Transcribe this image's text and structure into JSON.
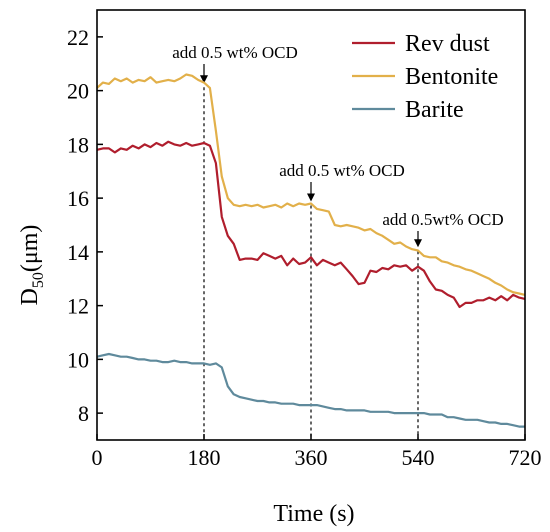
{
  "chart_data": {
    "type": "line",
    "xlabel": "Time (s)",
    "ylabel": "D",
    "ylabel_sub": "50",
    "ylabel_unit": "(μm)",
    "xlim": [
      0,
      720
    ],
    "ylim": [
      7,
      23
    ],
    "xticks": [
      0,
      180,
      360,
      540,
      720
    ],
    "yticks": [
      8,
      10,
      12,
      14,
      16,
      18,
      20,
      22
    ],
    "grid": false,
    "legend_position": "top-right",
    "annotations": [
      {
        "text": "add 0.5 wt% OCD",
        "x": 180,
        "y": 20.2
      },
      {
        "text": "add 0.5 wt% OCD",
        "x": 360,
        "y": 15.8
      },
      {
        "text": "add 0.5wt% OCD",
        "x": 540,
        "y": 14.1
      }
    ],
    "series": [
      {
        "name": "Rev dust",
        "color": "#b01e2d",
        "points": [
          [
            0,
            17.8
          ],
          [
            10,
            17.85
          ],
          [
            20,
            17.85
          ],
          [
            30,
            17.7
          ],
          [
            40,
            17.85
          ],
          [
            50,
            17.8
          ],
          [
            60,
            17.95
          ],
          [
            70,
            17.85
          ],
          [
            80,
            18.0
          ],
          [
            90,
            17.9
          ],
          [
            100,
            18.05
          ],
          [
            110,
            17.95
          ],
          [
            120,
            18.1
          ],
          [
            130,
            18.0
          ],
          [
            140,
            17.95
          ],
          [
            150,
            18.05
          ],
          [
            160,
            17.95
          ],
          [
            170,
            18.0
          ],
          [
            180,
            18.05
          ],
          [
            190,
            17.95
          ],
          [
            200,
            17.3
          ],
          [
            210,
            15.3
          ],
          [
            220,
            14.6
          ],
          [
            230,
            14.3
          ],
          [
            240,
            13.7
          ],
          [
            250,
            13.75
          ],
          [
            260,
            13.75
          ],
          [
            270,
            13.7
          ],
          [
            280,
            13.95
          ],
          [
            290,
            13.85
          ],
          [
            300,
            13.75
          ],
          [
            310,
            13.85
          ],
          [
            320,
            13.5
          ],
          [
            330,
            13.75
          ],
          [
            340,
            13.55
          ],
          [
            350,
            13.6
          ],
          [
            360,
            13.8
          ],
          [
            370,
            13.5
          ],
          [
            380,
            13.7
          ],
          [
            390,
            13.6
          ],
          [
            400,
            13.5
          ],
          [
            410,
            13.6
          ],
          [
            420,
            13.35
          ],
          [
            430,
            13.1
          ],
          [
            440,
            12.8
          ],
          [
            450,
            12.85
          ],
          [
            460,
            13.3
          ],
          [
            470,
            13.25
          ],
          [
            480,
            13.4
          ],
          [
            490,
            13.35
          ],
          [
            500,
            13.5
          ],
          [
            510,
            13.45
          ],
          [
            520,
            13.5
          ],
          [
            530,
            13.3
          ],
          [
            540,
            13.45
          ],
          [
            550,
            13.3
          ],
          [
            560,
            12.9
          ],
          [
            570,
            12.6
          ],
          [
            580,
            12.55
          ],
          [
            590,
            12.4
          ],
          [
            600,
            12.3
          ],
          [
            610,
            11.95
          ],
          [
            620,
            12.1
          ],
          [
            630,
            12.1
          ],
          [
            640,
            12.2
          ],
          [
            650,
            12.2
          ],
          [
            660,
            12.3
          ],
          [
            670,
            12.2
          ],
          [
            680,
            12.35
          ],
          [
            690,
            12.2
          ],
          [
            700,
            12.4
          ],
          [
            710,
            12.3
          ],
          [
            720,
            12.25
          ]
        ]
      },
      {
        "name": "Bentonite",
        "color": "#e2b04a",
        "points": [
          [
            0,
            20.1
          ],
          [
            10,
            20.3
          ],
          [
            20,
            20.25
          ],
          [
            30,
            20.45
          ],
          [
            40,
            20.35
          ],
          [
            50,
            20.45
          ],
          [
            60,
            20.3
          ],
          [
            70,
            20.4
          ],
          [
            80,
            20.35
          ],
          [
            90,
            20.5
          ],
          [
            100,
            20.3
          ],
          [
            110,
            20.35
          ],
          [
            120,
            20.4
          ],
          [
            130,
            20.35
          ],
          [
            140,
            20.45
          ],
          [
            150,
            20.6
          ],
          [
            160,
            20.55
          ],
          [
            170,
            20.4
          ],
          [
            180,
            20.3
          ],
          [
            190,
            20.1
          ],
          [
            200,
            18.5
          ],
          [
            210,
            16.8
          ],
          [
            220,
            16.0
          ],
          [
            230,
            15.75
          ],
          [
            240,
            15.7
          ],
          [
            250,
            15.75
          ],
          [
            260,
            15.7
          ],
          [
            270,
            15.75
          ],
          [
            280,
            15.65
          ],
          [
            290,
            15.7
          ],
          [
            300,
            15.75
          ],
          [
            310,
            15.65
          ],
          [
            320,
            15.8
          ],
          [
            330,
            15.7
          ],
          [
            340,
            15.8
          ],
          [
            350,
            15.75
          ],
          [
            360,
            15.8
          ],
          [
            370,
            15.6
          ],
          [
            380,
            15.55
          ],
          [
            390,
            15.5
          ],
          [
            400,
            15.0
          ],
          [
            410,
            14.95
          ],
          [
            420,
            15.0
          ],
          [
            430,
            14.95
          ],
          [
            440,
            14.9
          ],
          [
            450,
            14.8
          ],
          [
            460,
            14.85
          ],
          [
            470,
            14.7
          ],
          [
            480,
            14.6
          ],
          [
            490,
            14.45
          ],
          [
            500,
            14.3
          ],
          [
            510,
            14.35
          ],
          [
            520,
            14.2
          ],
          [
            530,
            14.1
          ],
          [
            540,
            14.05
          ],
          [
            550,
            13.85
          ],
          [
            560,
            13.8
          ],
          [
            570,
            13.8
          ],
          [
            580,
            13.65
          ],
          [
            590,
            13.6
          ],
          [
            600,
            13.5
          ],
          [
            610,
            13.45
          ],
          [
            620,
            13.35
          ],
          [
            630,
            13.3
          ],
          [
            640,
            13.2
          ],
          [
            650,
            13.1
          ],
          [
            660,
            13.0
          ],
          [
            670,
            12.85
          ],
          [
            680,
            12.75
          ],
          [
            690,
            12.6
          ],
          [
            700,
            12.5
          ],
          [
            710,
            12.45
          ],
          [
            720,
            12.4
          ]
        ]
      },
      {
        "name": "Barite",
        "color": "#5f8a9c",
        "points": [
          [
            0,
            10.1
          ],
          [
            10,
            10.15
          ],
          [
            20,
            10.2
          ],
          [
            30,
            10.15
          ],
          [
            40,
            10.1
          ],
          [
            50,
            10.1
          ],
          [
            60,
            10.05
          ],
          [
            70,
            10.0
          ],
          [
            80,
            10.0
          ],
          [
            90,
            9.95
          ],
          [
            100,
            9.95
          ],
          [
            110,
            9.9
          ],
          [
            120,
            9.9
          ],
          [
            130,
            9.95
          ],
          [
            140,
            9.9
          ],
          [
            150,
            9.9
          ],
          [
            160,
            9.85
          ],
          [
            170,
            9.85
          ],
          [
            180,
            9.85
          ],
          [
            190,
            9.8
          ],
          [
            200,
            9.85
          ],
          [
            210,
            9.7
          ],
          [
            220,
            9.0
          ],
          [
            230,
            8.7
          ],
          [
            240,
            8.6
          ],
          [
            250,
            8.55
          ],
          [
            260,
            8.5
          ],
          [
            270,
            8.45
          ],
          [
            280,
            8.45
          ],
          [
            290,
            8.4
          ],
          [
            300,
            8.4
          ],
          [
            310,
            8.35
          ],
          [
            320,
            8.35
          ],
          [
            330,
            8.35
          ],
          [
            340,
            8.3
          ],
          [
            350,
            8.3
          ],
          [
            360,
            8.3
          ],
          [
            370,
            8.3
          ],
          [
            380,
            8.25
          ],
          [
            390,
            8.2
          ],
          [
            400,
            8.15
          ],
          [
            410,
            8.15
          ],
          [
            420,
            8.1
          ],
          [
            430,
            8.1
          ],
          [
            440,
            8.1
          ],
          [
            450,
            8.1
          ],
          [
            460,
            8.05
          ],
          [
            470,
            8.05
          ],
          [
            480,
            8.05
          ],
          [
            490,
            8.05
          ],
          [
            500,
            8.0
          ],
          [
            510,
            8.0
          ],
          [
            520,
            8.0
          ],
          [
            530,
            8.0
          ],
          [
            540,
            8.0
          ],
          [
            550,
            8.0
          ],
          [
            560,
            7.95
          ],
          [
            570,
            7.95
          ],
          [
            580,
            7.95
          ],
          [
            590,
            7.85
          ],
          [
            600,
            7.85
          ],
          [
            610,
            7.8
          ],
          [
            620,
            7.75
          ],
          [
            630,
            7.75
          ],
          [
            640,
            7.75
          ],
          [
            650,
            7.7
          ],
          [
            660,
            7.65
          ],
          [
            670,
            7.65
          ],
          [
            680,
            7.6
          ],
          [
            690,
            7.6
          ],
          [
            700,
            7.55
          ],
          [
            710,
            7.5
          ],
          [
            720,
            7.5
          ]
        ]
      }
    ]
  }
}
